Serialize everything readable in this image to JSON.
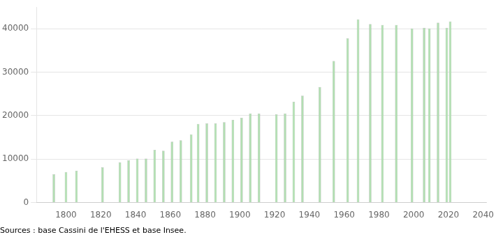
{
  "chart_data": {
    "type": "bar",
    "x": [
      1793,
      1800,
      1806,
      1821,
      1831,
      1836,
      1841,
      1846,
      1851,
      1856,
      1861,
      1866,
      1872,
      1876,
      1881,
      1886,
      1891,
      1896,
      1901,
      1906,
      1911,
      1921,
      1926,
      1931,
      1936,
      1946,
      1954,
      1962,
      1968,
      1975,
      1982,
      1990,
      1999,
      2006,
      2009,
      2014,
      2019,
      2021
    ],
    "values": [
      6500,
      7000,
      7300,
      8100,
      9200,
      9700,
      10100,
      10100,
      12100,
      11900,
      14000,
      14300,
      15700,
      18100,
      18200,
      18200,
      18500,
      19000,
      19500,
      20500,
      20500,
      20300,
      20500,
      23200,
      24600,
      26600,
      32600,
      37800,
      42200,
      41100,
      40900,
      40900,
      40100,
      40200,
      40100,
      41400,
      40200,
      41700
    ],
    "color": "#b2dfb2",
    "xlim": [
      1783,
      2042
    ],
    "xticks": [
      1800,
      1820,
      1840,
      1860,
      1880,
      1900,
      1920,
      1940,
      1960,
      1980,
      2000,
      2020,
      2040
    ],
    "ylim": [
      0,
      45000
    ],
    "yticks": [
      0,
      10000,
      20000,
      30000,
      40000
    ],
    "grid": "y",
    "annotations": [
      "Sources : base Cassini de l'EHESS et base Insee."
    ]
  }
}
